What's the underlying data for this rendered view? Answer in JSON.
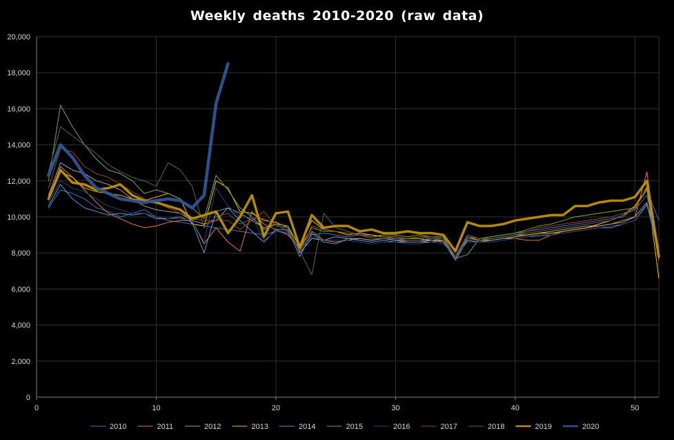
{
  "chart_data": {
    "type": "line",
    "title": "Weekly deaths 2010-2020 (raw data)",
    "xlabel": "",
    "ylabel": "",
    "xlim": [
      0,
      52
    ],
    "ylim": [
      0,
      20000
    ],
    "x_ticks": [
      0,
      10,
      20,
      30,
      40,
      50
    ],
    "x_tick_labels": [
      "0",
      "10",
      "20",
      "30",
      "40",
      "50"
    ],
    "y_ticks": [
      0,
      2000,
      4000,
      6000,
      8000,
      10000,
      12000,
      14000,
      16000,
      18000,
      20000
    ],
    "y_tick_labels": [
      "0",
      "2,000",
      "4,000",
      "6,000",
      "8,000",
      "10,000",
      "12,000",
      "14,000",
      "16,000",
      "18,000",
      "20,000"
    ],
    "grid": true,
    "legend_position": "bottom",
    "series": [
      {
        "name": "2010",
        "color": "#4472c4",
        "width": 1,
        "values": [
          10500,
          11500,
          11300,
          11000,
          10500,
          10300,
          10000,
          10200,
          10400,
          10000,
          9800,
          9700,
          9600,
          9500,
          9400,
          9300,
          9200,
          9100,
          9000,
          9200,
          9100,
          8200,
          9000,
          9100,
          9000,
          8900,
          9000,
          9000,
          8900,
          8800,
          8800,
          8900,
          8800,
          8800,
          7800,
          9000,
          8800,
          8900,
          9000,
          9100,
          9200,
          9300,
          9400,
          9500,
          9600,
          9700,
          9800,
          9900,
          10000,
          10500,
          11500,
          9800
        ]
      },
      {
        "name": "2011",
        "color": "#ed7d31",
        "width": 1,
        "values": [
          11000,
          12800,
          12200,
          11500,
          10800,
          10200,
          9900,
          9600,
          9400,
          9500,
          9700,
          9800,
          9800,
          8500,
          9400,
          8600,
          8100,
          10300,
          9600,
          9300,
          9000,
          8300,
          9200,
          8700,
          8600,
          8700,
          8800,
          8700,
          8800,
          8700,
          8600,
          8600,
          8600,
          8700,
          7800,
          8700,
          8600,
          8700,
          8800,
          8800,
          8700,
          8700,
          9000,
          9200,
          9300,
          9400,
          9500,
          9600,
          9700,
          10000,
          12500,
          7600
        ]
      },
      {
        "name": "2012",
        "color": "#a5a5a5",
        "width": 1,
        "values": [
          11200,
          13000,
          12600,
          12400,
          12000,
          11800,
          11500,
          11000,
          10600,
          10400,
          10300,
          10200,
          9800,
          9600,
          9800,
          10500,
          10200,
          9800,
          9400,
          9600,
          9500,
          8000,
          8800,
          8700,
          8900,
          8800,
          8800,
          8700,
          8800,
          8700,
          8700,
          8700,
          8700,
          8600,
          7700,
          8800,
          8700,
          8800,
          8900,
          9000,
          9000,
          9100,
          9200,
          9300,
          9400,
          9500,
          9500,
          9600,
          9800,
          10000,
          10800,
          8000
        ]
      },
      {
        "name": "2013",
        "color": "#ffc000",
        "width": 1,
        "values": [
          11000,
          12500,
          12200,
          11600,
          11400,
          11300,
          11200,
          11000,
          10900,
          11100,
          11300,
          11000,
          9600,
          9500,
          12000,
          11600,
          10300,
          10200,
          9800,
          9700,
          9400,
          8400,
          9800,
          9300,
          9200,
          9000,
          9100,
          9000,
          8900,
          8900,
          8800,
          8800,
          8700,
          8700,
          7700,
          8900,
          8700,
          8700,
          8800,
          8900,
          9000,
          9100,
          9100,
          9200,
          9300,
          9400,
          9600,
          9800,
          10100,
          10600,
          11600,
          6600
        ]
      },
      {
        "name": "2014",
        "color": "#5b9bd5",
        "width": 1,
        "values": [
          10600,
          11800,
          11000,
          10500,
          10300,
          10100,
          10200,
          10100,
          10200,
          9900,
          9900,
          10000,
          9700,
          8000,
          10300,
          10500,
          9800,
          9200,
          8600,
          9300,
          9300,
          7800,
          9100,
          8600,
          8500,
          8800,
          8700,
          8600,
          8700,
          8600,
          8600,
          8600,
          8700,
          8600,
          7600,
          8700,
          8600,
          8700,
          8800,
          8800,
          8900,
          9000,
          9000,
          9100,
          9200,
          9300,
          9400,
          9400,
          9600,
          9800,
          10700,
          8300
        ]
      },
      {
        "name": "2015",
        "color": "#70ad47",
        "width": 1,
        "values": [
          12000,
          16200,
          15000,
          14000,
          13200,
          12600,
          12400,
          12000,
          11300,
          11500,
          11300,
          11000,
          10500,
          9900,
          12300,
          11500,
          10500,
          10000,
          9300,
          9600,
          9500,
          8300,
          9400,
          9200,
          9200,
          9100,
          9000,
          8900,
          9000,
          9000,
          8900,
          9000,
          8900,
          8900,
          7700,
          7900,
          8800,
          8900,
          9000,
          9100,
          9300,
          9500,
          9600,
          9800,
          10000,
          10100,
          10200,
          10300,
          10400,
          10500,
          11500,
          8100
        ]
      },
      {
        "name": "2016",
        "color": "#264478",
        "width": 1,
        "values": [
          10800,
          12000,
          11600,
          11400,
          11000,
          10600,
          10400,
          10200,
          10200,
          10000,
          9900,
          9900,
          9800,
          8600,
          11600,
          10600,
          10000,
          10000,
          8700,
          9200,
          9200,
          8100,
          8900,
          8700,
          8700,
          8700,
          8600,
          8500,
          8600,
          8600,
          8500,
          8500,
          8600,
          8500,
          7800,
          8600,
          8600,
          8600,
          8700,
          8800,
          8900,
          8900,
          9000,
          9100,
          9200,
          9300,
          9400,
          9500,
          9600,
          9800,
          10600,
          8000
        ]
      },
      {
        "name": "2017",
        "color": "#9e480e",
        "width": 1,
        "values": [
          11600,
          13800,
          13600,
          12800,
          12400,
          12200,
          11800,
          11400,
          11000,
          10800,
          10500,
          10200,
          9900,
          9800,
          9800,
          9800,
          9300,
          9800,
          10300,
          9500,
          9400,
          8100,
          9500,
          9300,
          9200,
          9100,
          9000,
          8900,
          8900,
          8900,
          8800,
          8900,
          8900,
          8800,
          7700,
          8900,
          8800,
          8800,
          8900,
          9000,
          9200,
          9400,
          9500,
          9600,
          9700,
          9800,
          9900,
          10000,
          10200,
          10400,
          11700,
          8200
        ]
      },
      {
        "name": "2018",
        "color": "#636363",
        "width": 1,
        "values": [
          12500,
          15000,
          14500,
          14000,
          13500,
          12900,
          12500,
          12200,
          12000,
          11700,
          13000,
          12600,
          11700,
          9400,
          10000,
          10200,
          9600,
          9900,
          9900,
          9600,
          9200,
          8100,
          6800,
          10200,
          9400,
          9200,
          9000,
          8800,
          8800,
          8800,
          8700,
          8700,
          8800,
          8700,
          7700,
          8800,
          8700,
          8800,
          8900,
          9000,
          9100,
          9200,
          9300,
          9400,
          9500,
          9600,
          9700,
          9800,
          10100,
          10400,
          11200,
          8300
        ]
      },
      {
        "name": "2019",
        "color": "#bf9000",
        "width": 3.5,
        "values": [
          11000,
          12600,
          11900,
          11800,
          11500,
          11600,
          11800,
          11200,
          10900,
          10800,
          10600,
          10400,
          9900,
          10100,
          10300,
          9100,
          10000,
          11200,
          8900,
          10200,
          10300,
          8300,
          10100,
          9400,
          9500,
          9500,
          9200,
          9300,
          9100,
          9100,
          9200,
          9100,
          9100,
          9000,
          8100,
          9700,
          9500,
          9500,
          9600,
          9800,
          9900,
          10000,
          10100,
          10100,
          10600,
          10600,
          10800,
          10900,
          10900,
          11100,
          12000,
          7800
        ]
      },
      {
        "name": "2020",
        "color": "#2f5597",
        "width": 4.5,
        "values": [
          12300,
          14000,
          13300,
          12300,
          11600,
          11300,
          11000,
          10900,
          10800,
          10900,
          11000,
          10900,
          10500,
          11200,
          16300,
          18500
        ]
      }
    ]
  }
}
